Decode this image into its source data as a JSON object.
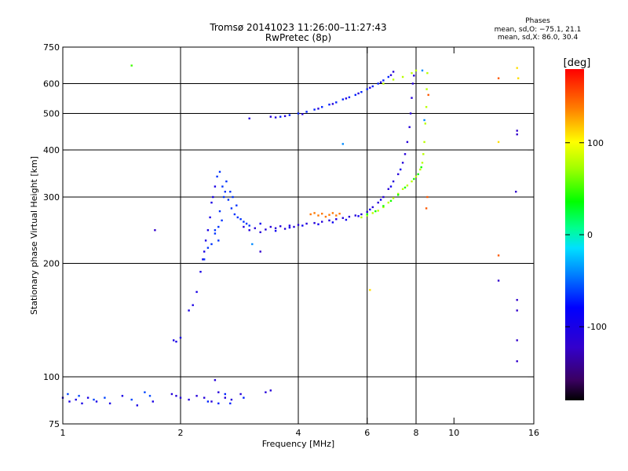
{
  "header": {
    "title": "Tromsø 20141023 11:26:00–11:27:43",
    "subtitle": "RwPretec (8p)"
  },
  "phases": {
    "title": "Phases",
    "line_o": "mean, sd,O: −75.1, 21.1",
    "line_x": "mean, sd,X:  86.0, 30.4"
  },
  "chart_data": {
    "type": "scatter",
    "xlabel": "Frequency [MHz]",
    "ylabel": "Stationary phase Virtual Height [km]",
    "x_scale": "log",
    "y_scale": "log",
    "xlim": [
      1,
      16
    ],
    "ylim": [
      75,
      750
    ],
    "x_ticks": [
      1,
      2,
      4,
      6,
      8,
      10,
      16
    ],
    "x_tick_labels": [
      "1",
      "2",
      "4",
      "6",
      "8",
      "10",
      "16"
    ],
    "y_ticks": [
      75,
      100,
      200,
      300,
      400,
      500,
      600,
      750
    ],
    "y_tick_labels": [
      "75",
      "100",
      "200",
      "300",
      "400",
      "500",
      "600",
      "750"
    ],
    "x_gridlines": [
      2,
      4,
      6,
      8
    ],
    "y_gridlines": [
      100,
      200,
      300,
      400,
      500,
      600
    ],
    "colorbar": {
      "label": "[deg]",
      "range": [
        -180,
        180
      ],
      "ticks": [
        100,
        0,
        -100
      ],
      "tick_labels": [
        "100",
        "0",
        "-100"
      ]
    },
    "series": [
      {
        "phase": -100,
        "points": [
          [
            1.0,
            88
          ],
          [
            1.04,
            86
          ],
          [
            1.08,
            87
          ],
          [
            1.12,
            85
          ],
          [
            1.16,
            88
          ],
          [
            1.22,
            86
          ],
          [
            1.32,
            85
          ],
          [
            1.42,
            89
          ],
          [
            1.55,
            84
          ],
          [
            1.7,
            86
          ]
        ]
      },
      {
        "phase": -60,
        "points": [
          [
            1.03,
            90
          ],
          [
            1.1,
            89
          ],
          [
            1.2,
            87
          ],
          [
            1.28,
            88
          ],
          [
            1.5,
            87
          ],
          [
            1.62,
            91
          ],
          [
            1.67,
            89
          ]
        ]
      },
      {
        "phase": -110,
        "points": [
          [
            1.9,
            90
          ],
          [
            1.95,
            89
          ],
          [
            2.0,
            88
          ],
          [
            2.1,
            87
          ],
          [
            2.2,
            89
          ],
          [
            2.3,
            88
          ],
          [
            2.4,
            86
          ],
          [
            2.45,
            98
          ],
          [
            2.5,
            91
          ],
          [
            2.6,
            88
          ],
          [
            2.7,
            87
          ],
          [
            2.85,
            90
          ],
          [
            3.3,
            91
          ],
          [
            3.4,
            92
          ]
        ]
      },
      {
        "phase": -70,
        "points": [
          [
            2.35,
            86
          ],
          [
            2.5,
            85
          ],
          [
            2.6,
            90
          ],
          [
            2.68,
            85
          ],
          [
            2.9,
            88
          ]
        ]
      },
      {
        "phase": -100,
        "points": [
          [
            1.92,
            125
          ],
          [
            1.95,
            124
          ],
          [
            2.0,
            127
          ],
          [
            2.1,
            150
          ],
          [
            2.15,
            155
          ],
          [
            2.2,
            168
          ],
          [
            2.25,
            190
          ],
          [
            2.28,
            205
          ],
          [
            2.3,
            215
          ],
          [
            2.32,
            230
          ],
          [
            2.35,
            245
          ],
          [
            2.38,
            265
          ],
          [
            2.4,
            290
          ],
          [
            2.42,
            300
          ],
          [
            2.45,
            320
          ]
        ]
      },
      {
        "phase": -65,
        "points": [
          [
            2.3,
            205
          ],
          [
            2.35,
            220
          ],
          [
            2.4,
            225
          ],
          [
            2.45,
            240
          ],
          [
            2.5,
            250
          ],
          [
            2.52,
            275
          ],
          [
            2.55,
            260
          ],
          [
            2.58,
            300
          ],
          [
            2.6,
            310
          ],
          [
            2.62,
            330
          ],
          [
            2.65,
            295
          ],
          [
            2.7,
            280
          ],
          [
            2.75,
            270
          ],
          [
            2.8,
            265
          ],
          [
            2.85,
            262
          ],
          [
            2.9,
            258
          ],
          [
            2.95,
            255
          ],
          [
            3.0,
            252
          ],
          [
            2.48,
            340
          ],
          [
            2.52,
            350
          ],
          [
            2.56,
            320
          ],
          [
            2.68,
            310
          ],
          [
            2.72,
            300
          ],
          [
            2.78,
            285
          ],
          [
            2.5,
            230
          ],
          [
            2.45,
            245
          ]
        ]
      },
      {
        "phase": -110,
        "points": [
          [
            2.9,
            250
          ],
          [
            3.0,
            245
          ],
          [
            3.1,
            248
          ],
          [
            3.2,
            242
          ],
          [
            3.3,
            246
          ],
          [
            3.4,
            250
          ],
          [
            3.5,
            248
          ],
          [
            3.6,
            251
          ],
          [
            3.7,
            247
          ],
          [
            3.8,
            252
          ],
          [
            3.9,
            250
          ],
          [
            4.0,
            253
          ],
          [
            4.2,
            255
          ],
          [
            4.4,
            256
          ],
          [
            4.6,
            258
          ],
          [
            4.8,
            260
          ],
          [
            5.0,
            262
          ],
          [
            5.2,
            264
          ],
          [
            5.4,
            266
          ],
          [
            5.6,
            268
          ],
          [
            5.8,
            270
          ],
          [
            6.0,
            274
          ],
          [
            6.2,
            282
          ],
          [
            6.4,
            290
          ],
          [
            6.6,
            300
          ],
          [
            6.8,
            315
          ],
          [
            7.0,
            330
          ],
          [
            7.2,
            345
          ],
          [
            7.4,
            370
          ],
          [
            7.5,
            390
          ],
          [
            7.6,
            420
          ],
          [
            7.7,
            460
          ],
          [
            7.75,
            500
          ],
          [
            7.8,
            550
          ],
          [
            7.85,
            600
          ],
          [
            7.9,
            630
          ]
        ]
      },
      {
        "phase": -90,
        "points": [
          [
            3.2,
            255
          ],
          [
            3.5,
            244
          ],
          [
            3.8,
            249
          ],
          [
            4.1,
            252
          ],
          [
            4.5,
            254
          ],
          [
            4.9,
            257
          ],
          [
            5.3,
            261
          ],
          [
            5.7,
            267
          ],
          [
            6.1,
            278
          ],
          [
            6.5,
            295
          ],
          [
            6.9,
            320
          ],
          [
            7.3,
            355
          ]
        ]
      },
      {
        "phase": 140,
        "points": [
          [
            4.3,
            270
          ],
          [
            4.4,
            272
          ],
          [
            4.5,
            268
          ],
          [
            4.6,
            271
          ],
          [
            4.7,
            266
          ],
          [
            4.8,
            269
          ],
          [
            4.9,
            272
          ],
          [
            5.0,
            268
          ],
          [
            5.1,
            271
          ]
        ]
      },
      {
        "phase": 80,
        "points": [
          [
            5.8,
            265
          ],
          [
            6.0,
            268
          ],
          [
            6.2,
            272
          ],
          [
            6.4,
            276
          ],
          [
            6.6,
            282
          ],
          [
            6.8,
            290
          ],
          [
            7.0,
            298
          ],
          [
            7.2,
            306
          ],
          [
            7.4,
            315
          ],
          [
            7.6,
            322
          ],
          [
            7.8,
            330
          ],
          [
            8.0,
            340
          ],
          [
            8.2,
            355
          ],
          [
            8.3,
            370
          ],
          [
            8.35,
            390
          ],
          [
            8.4,
            420
          ],
          [
            8.45,
            470
          ],
          [
            8.5,
            520
          ],
          [
            8.52,
            580
          ],
          [
            8.55,
            640
          ]
        ]
      },
      {
        "phase": 40,
        "points": [
          [
            6.0,
            270
          ],
          [
            6.3,
            275
          ],
          [
            6.6,
            284
          ],
          [
            6.9,
            293
          ],
          [
            7.2,
            304
          ],
          [
            7.5,
            318
          ],
          [
            7.9,
            335
          ],
          [
            8.1,
            345
          ],
          [
            8.25,
            360
          ]
        ]
      },
      {
        "phase": -70,
        "points": [
          [
            3.6,
            490
          ],
          [
            3.8,
            495
          ],
          [
            4.0,
            500
          ],
          [
            4.2,
            505
          ],
          [
            4.4,
            512
          ],
          [
            4.6,
            520
          ],
          [
            4.8,
            528
          ],
          [
            5.0,
            535
          ],
          [
            5.2,
            545
          ],
          [
            5.4,
            552
          ],
          [
            5.6,
            560
          ],
          [
            5.8,
            570
          ],
          [
            6.0,
            580
          ],
          [
            6.2,
            590
          ],
          [
            6.4,
            600
          ],
          [
            6.6,
            612
          ],
          [
            6.8,
            625
          ]
        ]
      },
      {
        "phase": -110,
        "points": [
          [
            3.4,
            490
          ],
          [
            3.5,
            488
          ],
          [
            3.7,
            492
          ],
          [
            3.0,
            485
          ],
          [
            4.1,
            498
          ],
          [
            4.5,
            515
          ],
          [
            4.9,
            530
          ],
          [
            5.3,
            548
          ],
          [
            5.7,
            565
          ],
          [
            6.1,
            585
          ],
          [
            6.5,
            605
          ],
          [
            6.9,
            632
          ],
          [
            7.0,
            645
          ]
        ]
      },
      {
        "phase": 80,
        "points": [
          [
            6.6,
            600
          ],
          [
            7.0,
            615
          ],
          [
            7.4,
            625
          ],
          [
            7.8,
            640
          ],
          [
            8.0,
            650
          ]
        ]
      },
      {
        "phase": 150,
        "points": [
          [
            8.5,
            280
          ],
          [
            8.55,
            300
          ],
          [
            8.6,
            560
          ],
          [
            13.0,
            620
          ],
          [
            13.0,
            210
          ]
        ]
      },
      {
        "phase": 110,
        "points": [
          [
            13.0,
            420
          ],
          [
            14.5,
            660
          ],
          [
            14.6,
            620
          ],
          [
            6.1,
            170
          ]
        ]
      },
      {
        "phase": -120,
        "points": [
          [
            13.0,
            180
          ],
          [
            14.5,
            450
          ],
          [
            14.5,
            440
          ],
          [
            14.4,
            310
          ],
          [
            14.5,
            160
          ],
          [
            14.5,
            150
          ],
          [
            14.5,
            125
          ],
          [
            14.5,
            110
          ],
          [
            1.72,
            245
          ],
          [
            3.2,
            215
          ]
        ]
      },
      {
        "phase": 50,
        "points": [
          [
            1.5,
            670
          ]
        ]
      },
      {
        "phase": -40,
        "points": [
          [
            5.2,
            415
          ],
          [
            3.05,
            225
          ],
          [
            8.3,
            650
          ],
          [
            8.4,
            480
          ]
        ]
      }
    ]
  }
}
